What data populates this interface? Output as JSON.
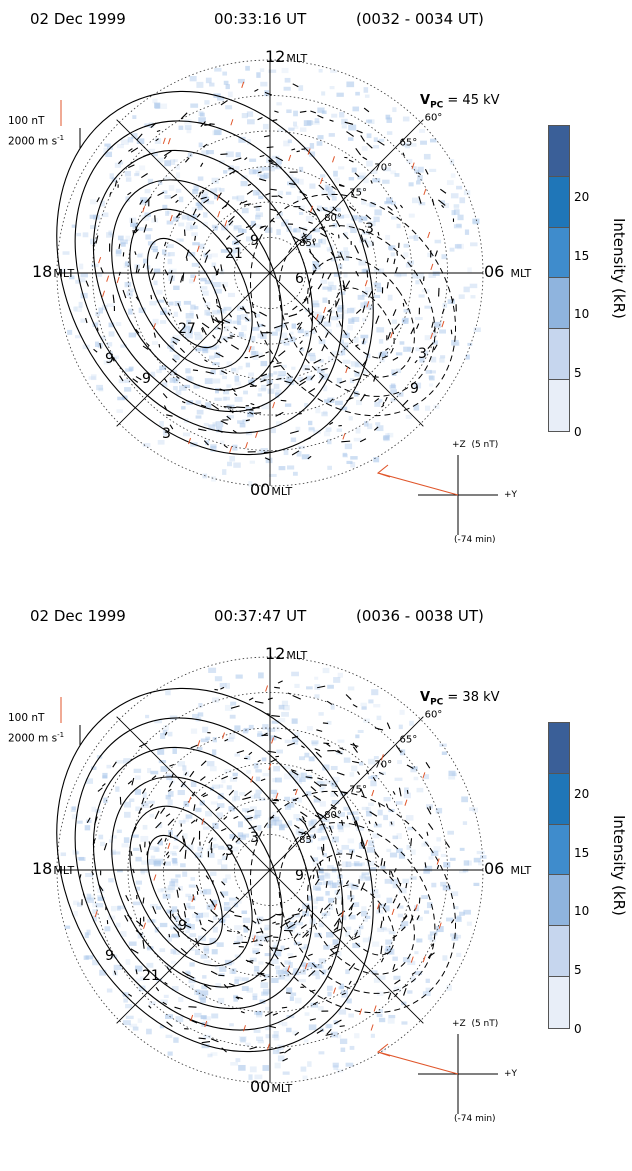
{
  "panels": [
    {
      "date": "02 Dec 1999",
      "time": "00:33:16 UT",
      "interval": "(0032 - 0034 UT)",
      "vpc_label": "V",
      "vpc_sub": "PC",
      "vpc_value": "= 45 kV",
      "contour_labels": [
        "9",
        "9",
        "27",
        "21",
        "9",
        "6",
        "3",
        "3",
        "3",
        "9"
      ],
      "imf_age": "(-74 min)"
    },
    {
      "date": "02 Dec 1999",
      "time": "00:37:47 UT",
      "interval": "(0036 - 0038 UT)",
      "vpc_label": "V",
      "vpc_sub": "PC",
      "vpc_value": "= 38 kV",
      "contour_labels": [
        "9",
        "21",
        "9",
        "3",
        "3",
        "9"
      ],
      "imf_age": "(-74 min)"
    }
  ],
  "mlt": {
    "top": "12",
    "left": "18",
    "right": "06",
    "bottom": "00",
    "unit": "MLT"
  },
  "lat_labels": [
    "60°",
    "65°",
    "70°",
    "75°",
    "80°",
    "85°"
  ],
  "scale": {
    "mag": "100 nT",
    "vel": "2000 m s",
    "vel_exp": "-1"
  },
  "imf": {
    "z": "+Z",
    "z_scale": "(5 nT)",
    "y": "+Y"
  },
  "colorbar": {
    "label": "Intensity (kR)",
    "ticks": [
      "20",
      "15",
      "10",
      "5",
      "0"
    ],
    "levels": [
      0,
      5,
      10,
      15,
      20,
      25
    ],
    "colors": [
      "#e8eef8",
      "#c6d6ee",
      "#8fb4de",
      "#3f8ccc",
      "#1f76b8",
      "#3a5f98"
    ]
  },
  "colors": {
    "aurora": "#a9c6ea",
    "vector_red": "#e0562b",
    "imf_arrow": "#e0562b"
  }
}
